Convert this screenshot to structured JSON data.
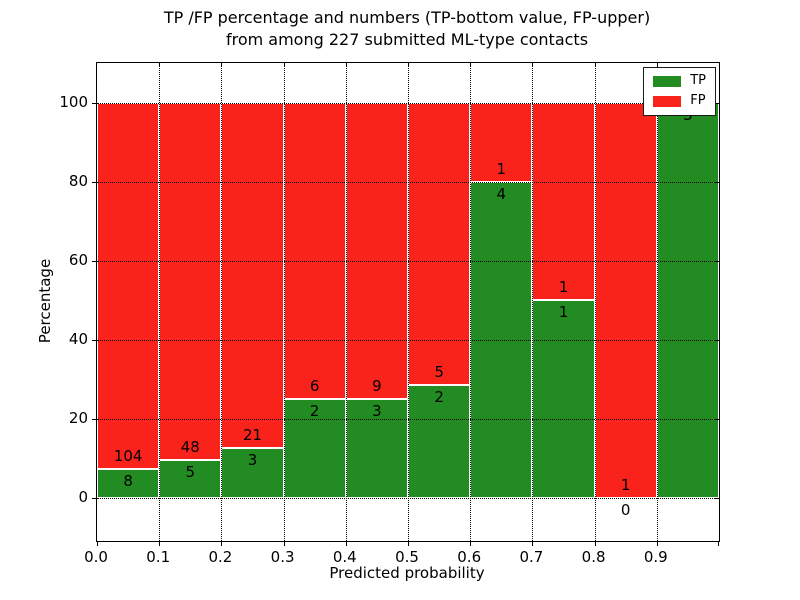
{
  "chart_data": {
    "type": "bar",
    "stacked": true,
    "title_line1": "TP /FP percentage and numbers (TP-bottom value, FP-upper)",
    "title_line2": "from among 227 submitted ML-type contacts",
    "xlabel": "Predicted probability",
    "ylabel": "Percentage",
    "xlim": [
      0.0,
      1.0
    ],
    "ylim": [
      -11,
      110
    ],
    "grid": true,
    "x_tick_labels": [
      "0.0",
      "0.1",
      "0.2",
      "0.3",
      "0.4",
      "0.5",
      "0.6",
      "0.7",
      "0.8",
      "0.9"
    ],
    "y_tick_values": [
      0,
      20,
      40,
      60,
      80,
      100
    ],
    "y_tick_labels": [
      "0",
      "20",
      "40",
      "60",
      "80",
      "100"
    ],
    "colors": {
      "tp": "#228b22",
      "fp": "#fa231b"
    },
    "legend": {
      "position": "upper right",
      "items": [
        {
          "label": "TP",
          "color": "#228b22"
        },
        {
          "label": "FP",
          "color": "#fa231b"
        }
      ]
    },
    "bins": [
      {
        "range": "0.0-0.1",
        "tp": 8,
        "fp": 104,
        "tp_pct": 7.14,
        "tp_label": "8",
        "fp_label": "104"
      },
      {
        "range": "0.1-0.2",
        "tp": 5,
        "fp": 48,
        "tp_pct": 9.43,
        "tp_label": "5",
        "fp_label": "48"
      },
      {
        "range": "0.2-0.3",
        "tp": 3,
        "fp": 21,
        "tp_pct": 12.5,
        "tp_label": "3",
        "fp_label": "21"
      },
      {
        "range": "0.3-0.4",
        "tp": 2,
        "fp": 6,
        "tp_pct": 25.0,
        "tp_label": "2",
        "fp_label": "6"
      },
      {
        "range": "0.4-0.5",
        "tp": 3,
        "fp": 9,
        "tp_pct": 25.0,
        "tp_label": "3",
        "fp_label": "9"
      },
      {
        "range": "0.5-0.6",
        "tp": 2,
        "fp": 5,
        "tp_pct": 28.57,
        "tp_label": "2",
        "fp_label": "5"
      },
      {
        "range": "0.6-0.7",
        "tp": 4,
        "fp": 1,
        "tp_pct": 80.0,
        "tp_label": "4",
        "fp_label": "1"
      },
      {
        "range": "0.7-0.8",
        "tp": 1,
        "fp": 1,
        "tp_pct": 50.0,
        "tp_label": "1",
        "fp_label": "1"
      },
      {
        "range": "0.8-0.9",
        "tp": 0,
        "fp": 1,
        "tp_pct": 0.0,
        "tp_label": "0",
        "fp_label": "1"
      },
      {
        "range": "0.9-1.0",
        "tp": 3,
        "fp": 0,
        "tp_pct": 100.0,
        "tp_label": "3",
        "fp_label": ""
      }
    ]
  }
}
